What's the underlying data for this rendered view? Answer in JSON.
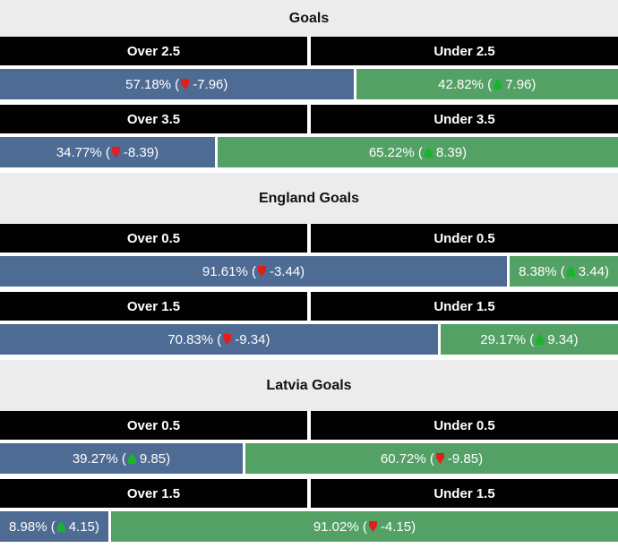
{
  "colors": {
    "bar_blue": "#4e6b93",
    "bar_green": "#53a164",
    "arrow_up": "#17b52b",
    "arrow_down": "#e31c1c",
    "strip_bg": "#ececec",
    "header_bg": "#010101",
    "header_text": "#ffffff",
    "bar_text": "#ffffff",
    "title_text": "#111111",
    "page_bg": "#ffffff"
  },
  "chart_data": {
    "type": "bar",
    "description": "Paired over/under goal probability bars with trend change values; left (over) segments blue, right (under) segments green; red arrow = negative change, green arrow = positive change",
    "sections": [
      {
        "title": "Goals",
        "markets": [
          {
            "over_label": "Over 2.5",
            "under_label": "Under 2.5",
            "over": {
              "percent": 57.18,
              "change": -7.96,
              "trend": "down",
              "text_before_icon": "57.18% (",
              "text_after_icon": "-7.96)"
            },
            "under": {
              "percent": 42.82,
              "change": 7.96,
              "trend": "up",
              "text_before_icon": "42.82% (",
              "text_after_icon": "7.96)"
            }
          },
          {
            "over_label": "Over 3.5",
            "under_label": "Under 3.5",
            "over": {
              "percent": 34.77,
              "change": -8.39,
              "trend": "down",
              "text_before_icon": "34.77% (",
              "text_after_icon": "-8.39)"
            },
            "under": {
              "percent": 65.22,
              "change": 8.39,
              "trend": "up",
              "text_before_icon": "65.22% (",
              "text_after_icon": "8.39)"
            }
          }
        ]
      },
      {
        "title": "England Goals",
        "markets": [
          {
            "over_label": "Over 0.5",
            "under_label": "Under 0.5",
            "over": {
              "percent": 91.61,
              "change": -3.44,
              "trend": "down",
              "text_before_icon": "91.61% (",
              "text_after_icon": "-3.44)"
            },
            "under": {
              "percent": 8.38,
              "change": 3.44,
              "trend": "up",
              "text_before_icon": "8.38% (",
              "text_after_icon": "3.44)"
            }
          },
          {
            "over_label": "Over 1.5",
            "under_label": "Under 1.5",
            "over": {
              "percent": 70.83,
              "change": -9.34,
              "trend": "down",
              "text_before_icon": "70.83% (",
              "text_after_icon": "-9.34)"
            },
            "under": {
              "percent": 29.17,
              "change": 9.34,
              "trend": "up",
              "text_before_icon": "29.17% (",
              "text_after_icon": "9.34)"
            }
          }
        ]
      },
      {
        "title": "Latvia Goals",
        "markets": [
          {
            "over_label": "Over 0.5",
            "under_label": "Under 0.5",
            "over": {
              "percent": 39.27,
              "change": 9.85,
              "trend": "up",
              "text_before_icon": "39.27% (",
              "text_after_icon": "9.85)"
            },
            "under": {
              "percent": 60.72,
              "change": -9.85,
              "trend": "down",
              "text_before_icon": "60.72% (",
              "text_after_icon": "-9.85)"
            }
          },
          {
            "over_label": "Over 1.5",
            "under_label": "Under 1.5",
            "over": {
              "percent": 8.98,
              "change": 4.15,
              "trend": "up",
              "text_before_icon": "8.98% (",
              "text_after_icon": "4.15)"
            },
            "under": {
              "percent": 91.02,
              "change": -4.15,
              "trend": "down",
              "text_before_icon": "91.02% (",
              "text_after_icon": "-4.15)"
            }
          }
        ]
      }
    ]
  }
}
